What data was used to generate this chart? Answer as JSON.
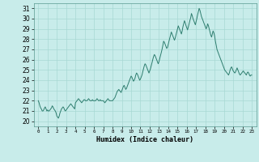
{
  "title": "",
  "xlabel": "Humidex (Indice chaleur)",
  "ylabel": "",
  "xlim": [
    -0.5,
    23.5
  ],
  "ylim": [
    19.5,
    31.5
  ],
  "yticks": [
    20,
    21,
    22,
    23,
    24,
    25,
    26,
    27,
    28,
    29,
    30,
    31
  ],
  "xticks": [
    0,
    1,
    2,
    3,
    4,
    5,
    6,
    7,
    8,
    9,
    10,
    11,
    12,
    13,
    14,
    15,
    16,
    17,
    18,
    19,
    20,
    21,
    22,
    23
  ],
  "line_color": "#2d7d6e",
  "bg_color": "#c8ecea",
  "grid_color": "#a8d8d4",
  "x": [
    0.0,
    0.08,
    0.17,
    0.25,
    0.33,
    0.42,
    0.5,
    0.58,
    0.67,
    0.75,
    0.83,
    0.92,
    1.0,
    1.08,
    1.17,
    1.25,
    1.33,
    1.42,
    1.5,
    1.58,
    1.67,
    1.75,
    1.83,
    1.92,
    2.0,
    2.08,
    2.17,
    2.25,
    2.33,
    2.42,
    2.5,
    2.58,
    2.67,
    2.75,
    2.83,
    2.92,
    3.0,
    3.08,
    3.17,
    3.25,
    3.33,
    3.42,
    3.5,
    3.58,
    3.67,
    3.75,
    3.83,
    3.92,
    4.0,
    4.08,
    4.17,
    4.25,
    4.33,
    4.42,
    4.5,
    4.58,
    4.67,
    4.75,
    4.83,
    4.92,
    5.0,
    5.08,
    5.17,
    5.25,
    5.33,
    5.42,
    5.5,
    5.58,
    5.67,
    5.75,
    5.83,
    5.92,
    6.0,
    6.08,
    6.17,
    6.25,
    6.33,
    6.42,
    6.5,
    6.58,
    6.67,
    6.75,
    6.83,
    6.92,
    7.0,
    7.08,
    7.17,
    7.25,
    7.33,
    7.42,
    7.5,
    7.58,
    7.67,
    7.75,
    7.83,
    7.92,
    8.0,
    8.08,
    8.17,
    8.25,
    8.33,
    8.42,
    8.5,
    8.58,
    8.67,
    8.75,
    8.83,
    8.92,
    9.0,
    9.08,
    9.17,
    9.25,
    9.33,
    9.42,
    9.5,
    9.58,
    9.67,
    9.75,
    9.83,
    9.92,
    10.0,
    10.08,
    10.17,
    10.25,
    10.33,
    10.42,
    10.5,
    10.58,
    10.67,
    10.75,
    10.83,
    10.92,
    11.0,
    11.08,
    11.17,
    11.25,
    11.33,
    11.42,
    11.5,
    11.58,
    11.67,
    11.75,
    11.83,
    11.92,
    12.0,
    12.08,
    12.17,
    12.25,
    12.33,
    12.42,
    12.5,
    12.58,
    12.67,
    12.75,
    12.83,
    12.92,
    13.0,
    13.08,
    13.17,
    13.25,
    13.33,
    13.42,
    13.5,
    13.58,
    13.67,
    13.75,
    13.83,
    13.92,
    14.0,
    14.08,
    14.17,
    14.25,
    14.33,
    14.42,
    14.5,
    14.58,
    14.67,
    14.75,
    14.83,
    14.92,
    15.0,
    15.08,
    15.17,
    15.25,
    15.33,
    15.42,
    15.5,
    15.58,
    15.67,
    15.75,
    15.83,
    15.92,
    16.0,
    16.08,
    16.17,
    16.25,
    16.33,
    16.42,
    16.5,
    16.58,
    16.67,
    16.75,
    16.83,
    16.92,
    17.0,
    17.08,
    17.17,
    17.25,
    17.33,
    17.42,
    17.5,
    17.58,
    17.67,
    17.75,
    17.83,
    17.92,
    18.0,
    18.08,
    18.17,
    18.25,
    18.33,
    18.42,
    18.5,
    18.58,
    18.67,
    18.75,
    18.83,
    18.92,
    19.0,
    19.08,
    19.17,
    19.25,
    19.33,
    19.42,
    19.5,
    19.58,
    19.67,
    19.75,
    19.83,
    19.92,
    20.0,
    20.08,
    20.17,
    20.25,
    20.33,
    20.42,
    20.5,
    20.58,
    20.67,
    20.75,
    20.83,
    20.92,
    21.0,
    21.08,
    21.17,
    21.25,
    21.33,
    21.42,
    21.5,
    21.58,
    21.67,
    21.75,
    21.83,
    21.92,
    22.0,
    22.08,
    22.17,
    22.25,
    22.33,
    22.42,
    22.5,
    22.58,
    22.67,
    22.75,
    22.83,
    22.92,
    23.0
  ],
  "y": [
    22.0,
    21.8,
    21.5,
    21.3,
    21.2,
    21.0,
    21.0,
    21.1,
    21.3,
    21.4,
    21.2,
    21.0,
    21.1,
    21.0,
    21.0,
    21.1,
    21.2,
    21.3,
    21.5,
    21.4,
    21.2,
    21.1,
    21.0,
    20.8,
    20.5,
    20.4,
    20.3,
    20.5,
    20.8,
    21.0,
    21.2,
    21.3,
    21.4,
    21.3,
    21.1,
    21.0,
    21.1,
    21.2,
    21.3,
    21.4,
    21.5,
    21.6,
    21.7,
    21.6,
    21.5,
    21.4,
    21.3,
    21.2,
    21.8,
    21.9,
    22.0,
    22.1,
    22.2,
    22.1,
    22.0,
    21.9,
    21.8,
    21.9,
    22.0,
    22.1,
    22.1,
    22.0,
    22.0,
    22.0,
    22.1,
    22.2,
    22.1,
    22.0,
    22.0,
    22.0,
    22.1,
    22.0,
    22.0,
    22.0,
    22.0,
    22.1,
    22.2,
    22.1,
    22.0,
    22.0,
    22.1,
    22.0,
    22.0,
    22.0,
    22.0,
    21.9,
    21.8,
    21.9,
    22.0,
    22.1,
    22.2,
    22.1,
    22.0,
    22.0,
    22.0,
    22.0,
    22.0,
    22.1,
    22.2,
    22.3,
    22.5,
    22.7,
    22.9,
    23.0,
    23.1,
    23.0,
    22.9,
    22.8,
    23.0,
    23.2,
    23.4,
    23.5,
    23.3,
    23.1,
    23.2,
    23.4,
    23.6,
    23.8,
    24.0,
    24.2,
    24.4,
    24.3,
    24.1,
    23.9,
    24.0,
    24.2,
    24.5,
    24.7,
    24.6,
    24.4,
    24.2,
    24.0,
    24.1,
    24.3,
    24.5,
    24.8,
    25.1,
    25.4,
    25.6,
    25.5,
    25.3,
    25.1,
    24.9,
    24.7,
    24.9,
    25.1,
    25.4,
    25.7,
    26.0,
    26.3,
    26.5,
    26.4,
    26.2,
    26.0,
    25.8,
    25.6,
    25.8,
    26.1,
    26.4,
    26.7,
    27.0,
    27.4,
    27.8,
    27.7,
    27.5,
    27.3,
    27.1,
    27.2,
    27.5,
    27.8,
    28.1,
    28.4,
    28.7,
    28.5,
    28.3,
    28.1,
    27.9,
    28.1,
    28.4,
    28.7,
    29.0,
    29.3,
    29.1,
    28.9,
    28.7,
    28.5,
    28.8,
    29.2,
    29.5,
    29.8,
    29.6,
    29.3,
    29.1,
    28.9,
    29.2,
    29.5,
    29.8,
    30.1,
    30.5,
    30.3,
    30.0,
    29.8,
    29.6,
    29.4,
    29.7,
    30.0,
    30.4,
    30.7,
    31.0,
    30.8,
    30.5,
    30.2,
    30.0,
    29.8,
    29.6,
    29.4,
    29.2,
    29.0,
    29.2,
    29.5,
    29.3,
    29.0,
    28.7,
    28.4,
    28.2,
    28.5,
    28.8,
    28.6,
    28.3,
    27.8,
    27.4,
    27.0,
    26.8,
    26.6,
    26.4,
    26.2,
    26.0,
    25.8,
    25.6,
    25.4,
    25.2,
    25.0,
    24.9,
    24.8,
    24.7,
    24.6,
    24.5,
    24.7,
    25.0,
    25.2,
    25.3,
    25.1,
    24.9,
    24.8,
    24.7,
    24.8,
    25.0,
    25.2,
    25.0,
    24.8,
    24.6,
    24.5,
    24.6,
    24.7,
    24.8,
    24.9,
    24.8,
    24.7,
    24.6,
    24.5,
    24.7,
    24.8,
    24.7,
    24.5,
    24.4,
    24.5,
    24.5
  ]
}
